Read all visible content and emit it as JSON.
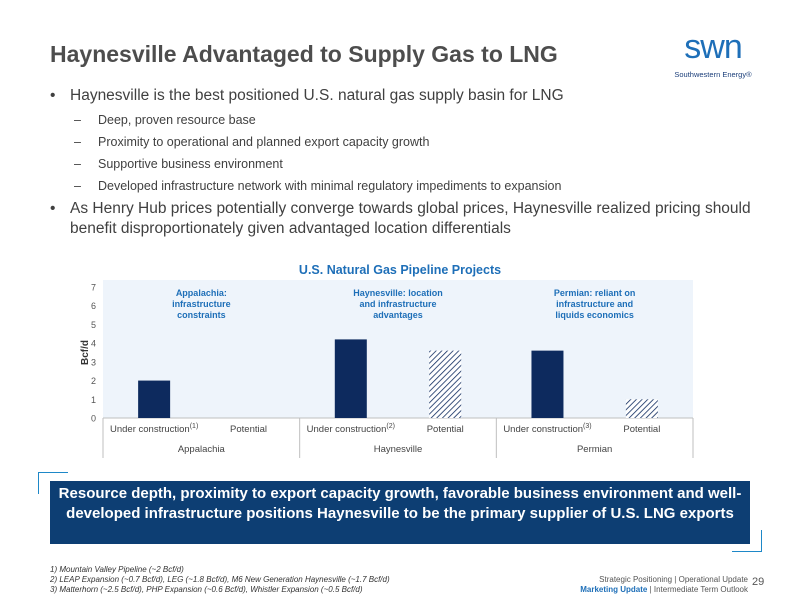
{
  "page": {
    "title": "Haynesville Advantaged to Supply Gas to LNG",
    "logo_text": "swn",
    "logo_subtitle": "Southwestern Energy®"
  },
  "bullets": [
    {
      "level": 1,
      "marker": "•",
      "text": "Haynesville is the best positioned U.S. natural gas supply basin for LNG"
    },
    {
      "level": 2,
      "marker": "–",
      "text": "Deep, proven resource base"
    },
    {
      "level": 2,
      "marker": "–",
      "text": "Proximity to operational and planned export capacity growth"
    },
    {
      "level": 2,
      "marker": "–",
      "text": "Supportive business environment"
    },
    {
      "level": 2,
      "marker": "–",
      "text": "Developed infrastructure network with minimal regulatory impediments to expansion"
    },
    {
      "level": 1,
      "marker": "•",
      "text": "As Henry Hub prices potentially converge towards global prices, Haynesville realized pricing should benefit disproportionately given advantaged location differentials"
    }
  ],
  "chart_data": {
    "type": "bar",
    "title": "U.S. Natural Gas Pipeline Projects",
    "ylabel": "Bcf/d",
    "ylim": [
      0,
      7
    ],
    "yticks": [
      0,
      1,
      2,
      3,
      4,
      5,
      6,
      7
    ],
    "groups": [
      {
        "name": "Appalachia",
        "annotation": "Appalachia: infrastructure constraints",
        "bars": [
          {
            "label": "Under construction",
            "note": "(1)",
            "value": 2.0,
            "style": "solid"
          },
          {
            "label": "Potential",
            "note": "",
            "value": 0,
            "style": "hatched"
          }
        ]
      },
      {
        "name": "Haynesville",
        "annotation": "Haynesville: location and infrastructure advantages",
        "bars": [
          {
            "label": "Under construction",
            "note": "(2)",
            "value": 4.2,
            "style": "solid"
          },
          {
            "label": "Potential",
            "note": "",
            "value": 3.6,
            "style": "hatched"
          }
        ]
      },
      {
        "name": "Permian",
        "annotation": "Permian: reliant on infrastructure and liquids economics",
        "bars": [
          {
            "label": "Under construction",
            "note": "(3)",
            "value": 3.6,
            "style": "solid"
          },
          {
            "label": "Potential",
            "note": "",
            "value": 1.0,
            "style": "hatched"
          }
        ]
      }
    ],
    "colors": {
      "solid": "#0d2a5e",
      "hatched": "#0d2a5e",
      "panel": "#eef4fb"
    }
  },
  "callout": {
    "text": "Resource depth, proximity to export capacity growth, favorable business environment and well-developed infrastructure positions Haynesville to be the primary supplier of U.S. LNG exports"
  },
  "footnotes": [
    "1) Mountain Valley Pipeline (~2 Bcf/d)",
    "2) LEAP Expansion (~0.7 Bcf/d), LEG (~1.8 Bcf/d), M6 New Generation Haynesville (~1.7 Bcf/d)",
    "3) Matterhorn (~2.5 Bcf/d), PHP Expansion (~0.6 Bcf/d), Whistler Expansion (~0.5 Bcf/d)"
  ],
  "footer": {
    "line1": "Strategic Positioning | Operational Update",
    "line2_highlight": "Marketing Update",
    "line2_rest": " | Intermediate Term Outlook",
    "page_number": "29"
  }
}
